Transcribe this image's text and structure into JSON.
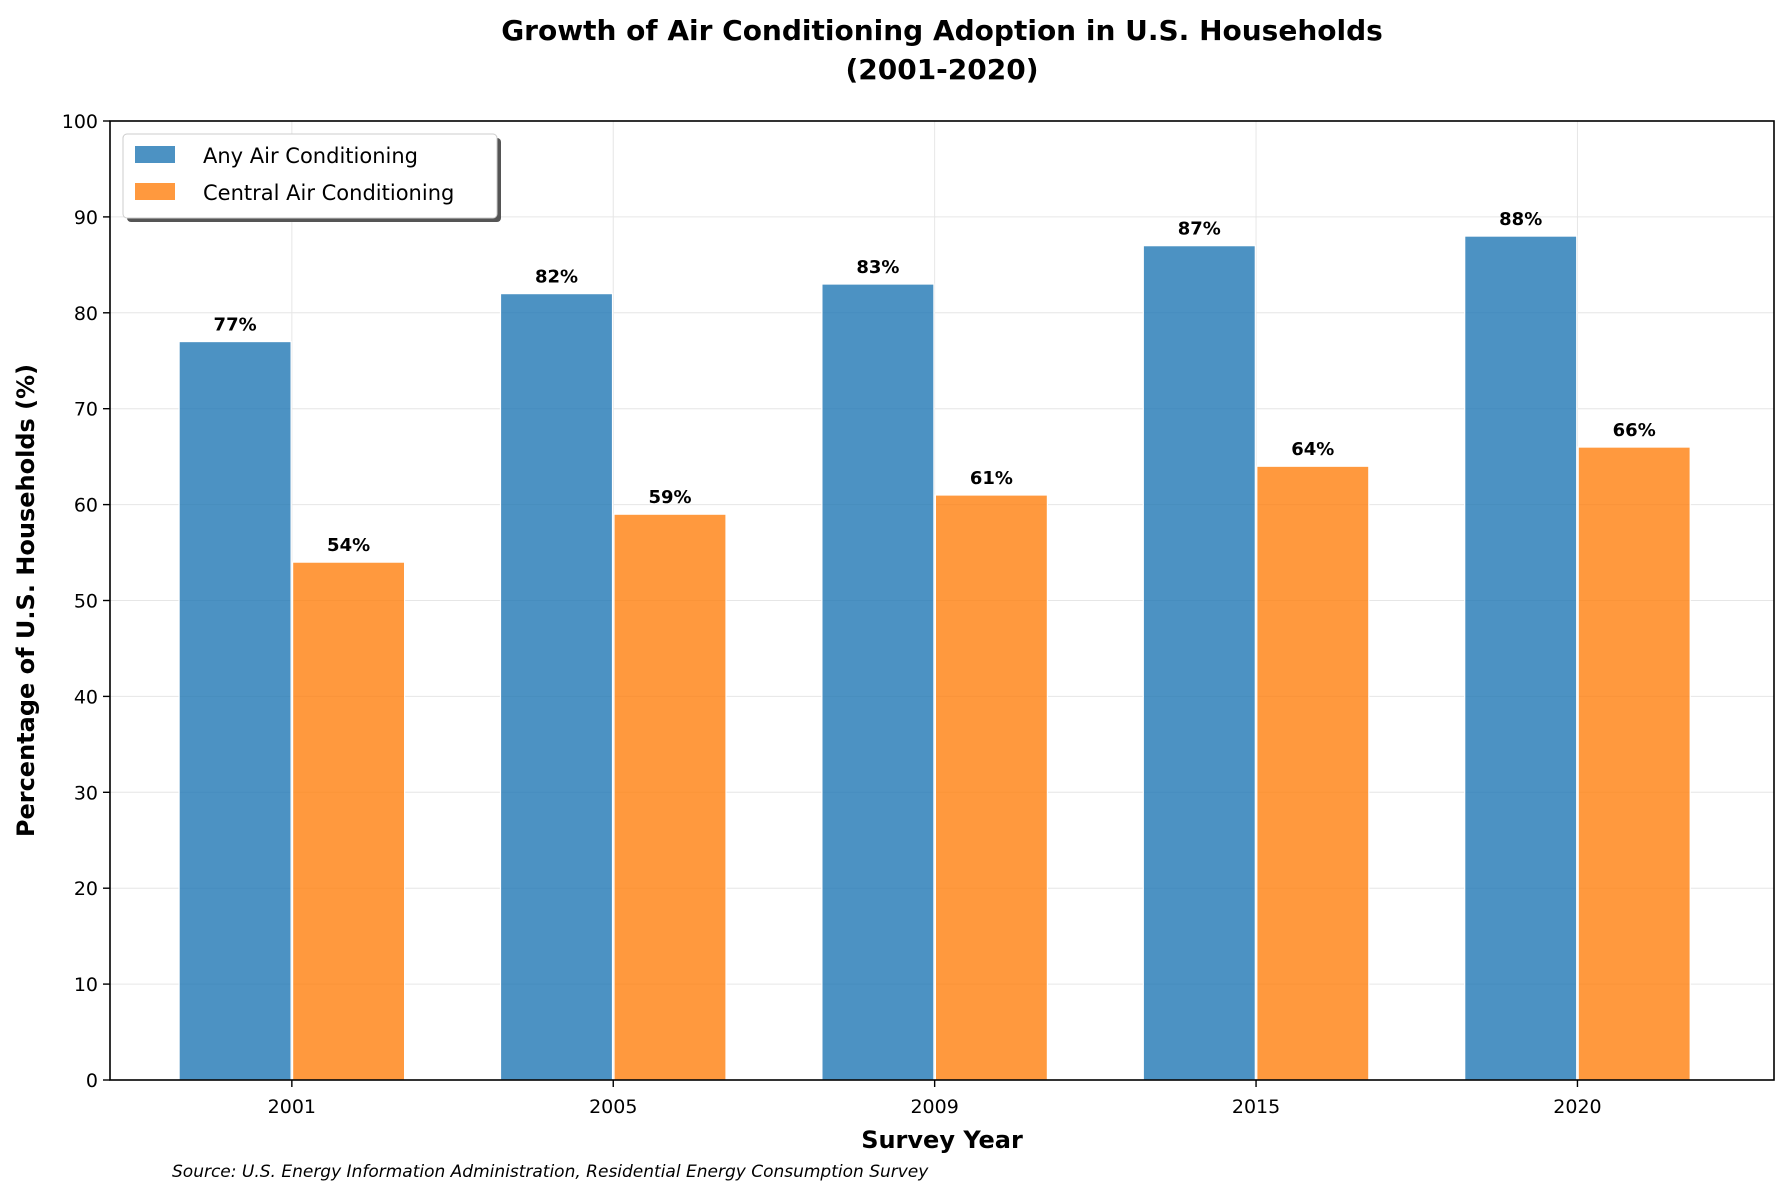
{
  "chart_data": {
    "type": "bar",
    "title": "Growth of Air Conditioning Adoption in U.S. Households",
    "subtitle": "(2001-2020)",
    "xlabel": "Survey Year",
    "ylabel": "Percentage of U.S. Households (%)",
    "categories": [
      "2001",
      "2005",
      "2009",
      "2015",
      "2020"
    ],
    "series": [
      {
        "name": "Any Air Conditioning",
        "values": [
          77,
          82,
          83,
          87,
          88
        ],
        "color": "#1f77b4"
      },
      {
        "name": "Central Air Conditioning",
        "values": [
          54,
          59,
          61,
          64,
          66
        ],
        "color": "#ff7f0e"
      }
    ],
    "ylim": [
      0,
      100
    ],
    "yticks": [
      0,
      10,
      20,
      30,
      40,
      50,
      60,
      70,
      80,
      90,
      100
    ],
    "value_suffix": "%",
    "grid": true,
    "legend_position": "top-left",
    "source": "Source: U.S. Energy Information Administration, Residential Energy Consumption Survey"
  }
}
